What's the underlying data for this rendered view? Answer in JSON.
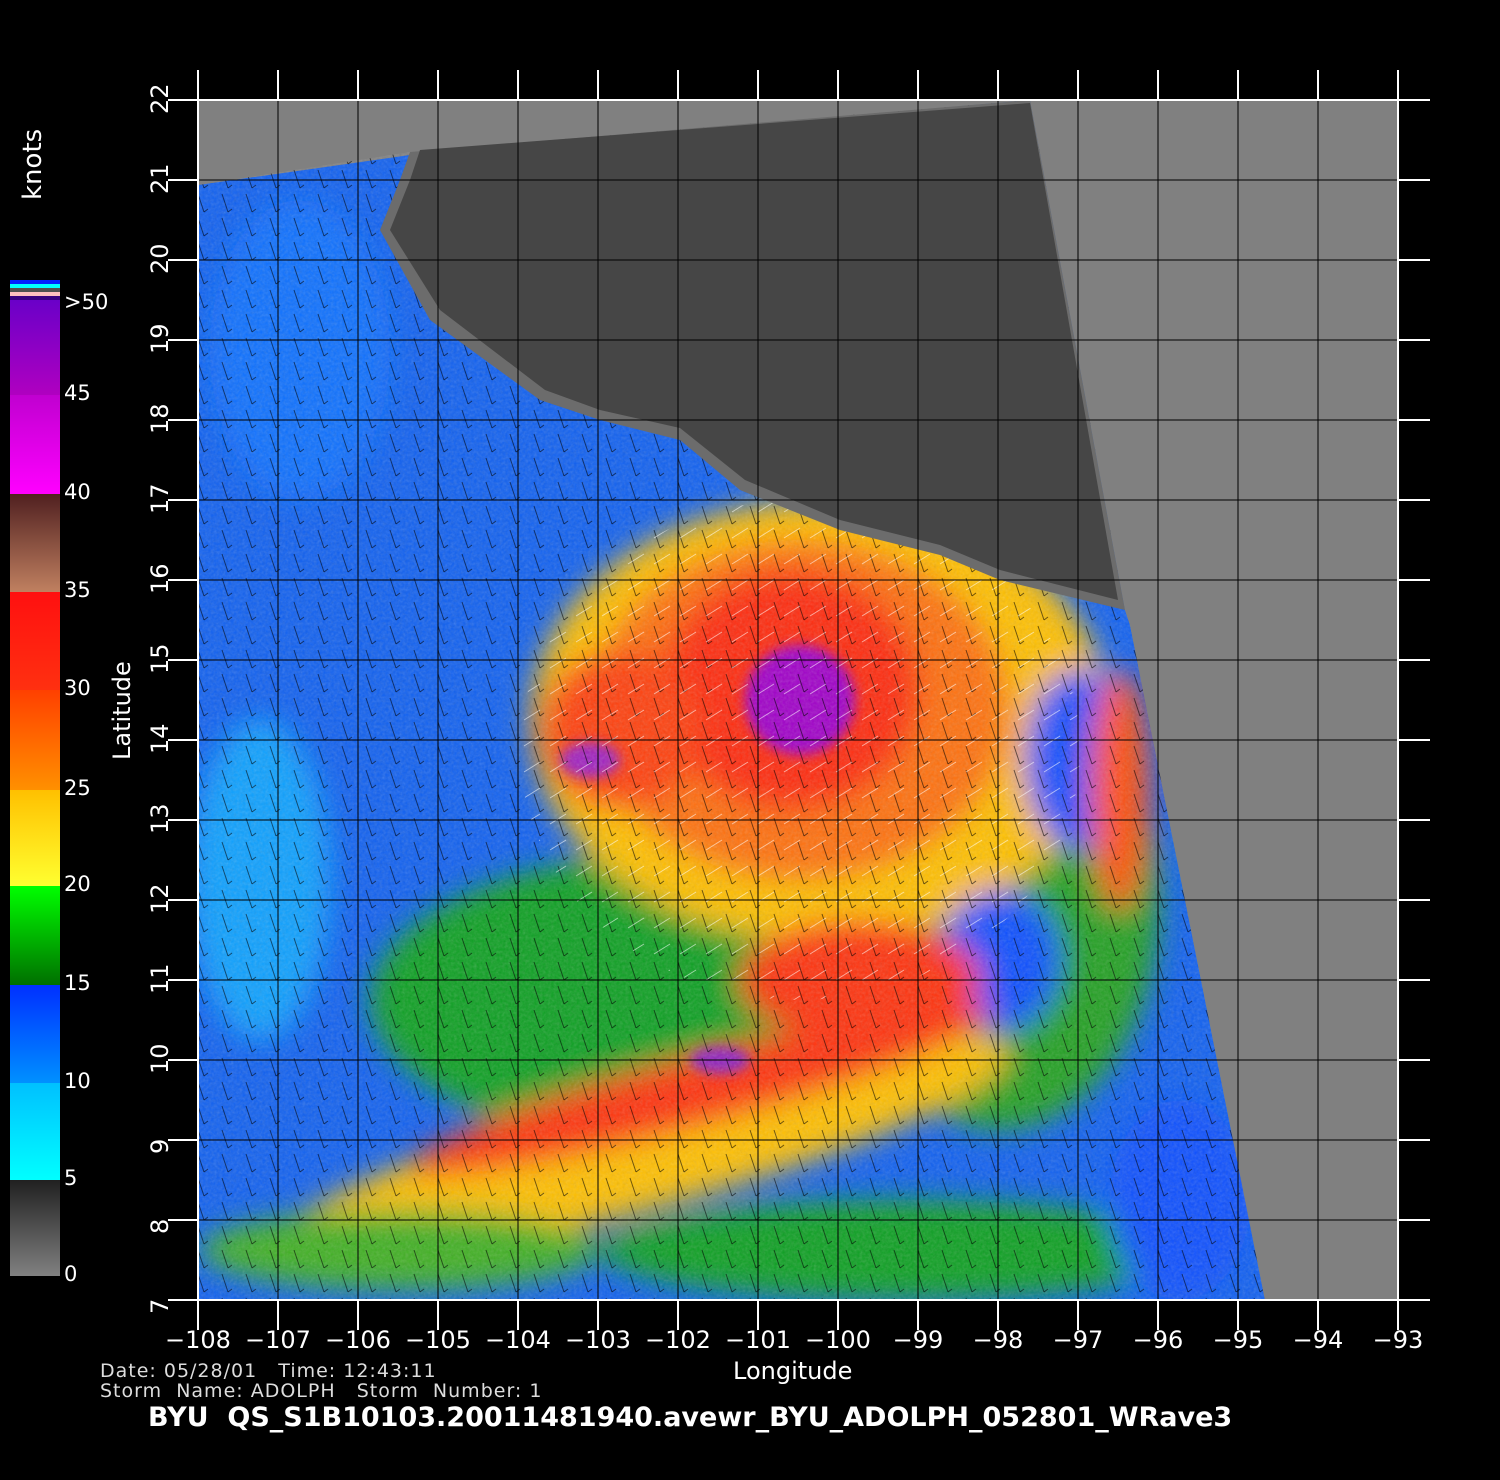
{
  "map": {
    "xlabel": "Longitude",
    "ylabel": "Latitude",
    "lon_ticks": [
      "−108",
      "−107",
      "−106",
      "−105",
      "−104",
      "−103",
      "−102",
      "−101",
      "−100",
      "−99",
      "−98",
      "−97",
      "−96",
      "−95",
      "−94",
      "−93"
    ],
    "lat_ticks": [
      "7",
      "8",
      "9",
      "10",
      "11",
      "12",
      "13",
      "14",
      "15",
      "16",
      "17",
      "18",
      "19",
      "20",
      "21",
      "22"
    ],
    "lon_range": [
      -108,
      -93
    ],
    "lat_range": [
      7,
      22
    ],
    "grid": true
  },
  "colorbar": {
    "units": "knots",
    "labels": [
      "0",
      "5",
      "10",
      "15",
      "20",
      "25",
      "30",
      "35",
      "40",
      "45",
      ">50"
    ],
    "colors": [
      "#808080",
      "#00ffff",
      "#0050ff",
      "#00b000",
      "#ffe000",
      "#ff8000",
      "#ff2010",
      "#a06040",
      "#ff00ff",
      "#9000c0",
      "#6a00c8"
    ]
  },
  "info": {
    "date_line": "Date: 05/28/01   Time: 12:43:11",
    "storm_line": "Storm  Name: ADOLPH   Storm  Number: 1"
  },
  "title": "BYU  QS_S1B10103.20011481940.avewr_BYU_ADOLPH_052801_WRave3"
}
